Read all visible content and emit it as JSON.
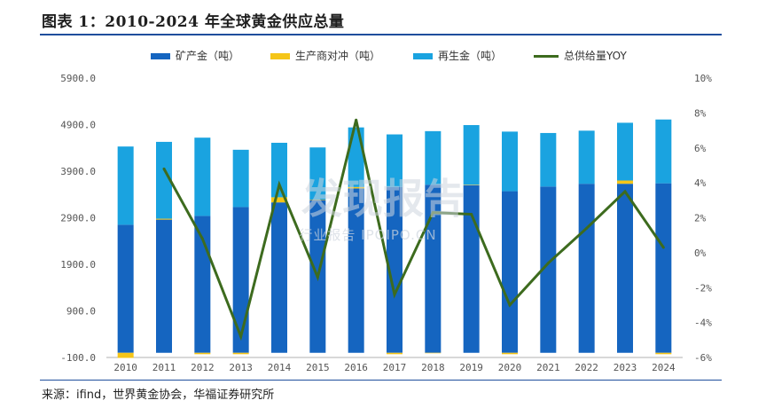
{
  "header": {
    "title": "图表 1：2010-2024 年全球黄金供应总量"
  },
  "footer": {
    "source": "来源：ifind，世界黄金协会，华福证券研究所"
  },
  "watermark": {
    "main": "发现报告",
    "sub": "行业报告 IPOIPO.CN"
  },
  "colors": {
    "mine": "#1565c0",
    "hedge": "#f5c518",
    "recycle": "#1aa3e0",
    "yoy": "#3d6b1e",
    "axis": "#b0b0b0"
  },
  "chart_data": {
    "type": "bar",
    "stacked": true,
    "categories": [
      "2010",
      "2011",
      "2012",
      "2013",
      "2014",
      "2015",
      "2016",
      "2017",
      "2018",
      "2019",
      "2020",
      "2021",
      "2022",
      "2023",
      "2024"
    ],
    "series": [
      {
        "name": "矿产金（吨）",
        "type": "bar",
        "axis": "left",
        "values": [
          2750,
          2860,
          2940,
          3130,
          3230,
          3280,
          3530,
          3560,
          3610,
          3600,
          3470,
          3570,
          3630,
          3630,
          3640
        ]
      },
      {
        "name": "生产商对冲（吨）",
        "type": "bar",
        "axis": "left",
        "values": [
          -110,
          20,
          -30,
          -30,
          110,
          10,
          30,
          -30,
          -10,
          10,
          -30,
          0,
          0,
          70,
          -30
        ]
      },
      {
        "name": "再生金（吨）",
        "type": "bar",
        "axis": "left",
        "values": [
          1680,
          1650,
          1680,
          1230,
          1170,
          1120,
          1280,
          1130,
          1150,
          1280,
          1280,
          1150,
          1140,
          1240,
          1370
        ]
      },
      {
        "name": "总供给量YOY",
        "type": "line",
        "axis": "right",
        "values": [
          null,
          4.8,
          0.8,
          -4.8,
          3.9,
          -1.4,
          7.6,
          -2.4,
          2.3,
          2.2,
          -3.0,
          -0.6,
          1.4,
          3.5,
          0.3
        ]
      }
    ],
    "y_left": {
      "ticks": [
        "-100.0",
        "900.0",
        "1900.0",
        "2900.0",
        "3900.0",
        "4900.0",
        "5900.0"
      ],
      "ylim": [
        -100,
        5900
      ]
    },
    "y_right": {
      "ticks": [
        "-6%",
        "-4%",
        "-2%",
        "0%",
        "2%",
        "4%",
        "6%",
        "8%",
        "10%"
      ],
      "ylim": [
        -6,
        10
      ]
    },
    "legend_position": "top",
    "grid": false
  }
}
